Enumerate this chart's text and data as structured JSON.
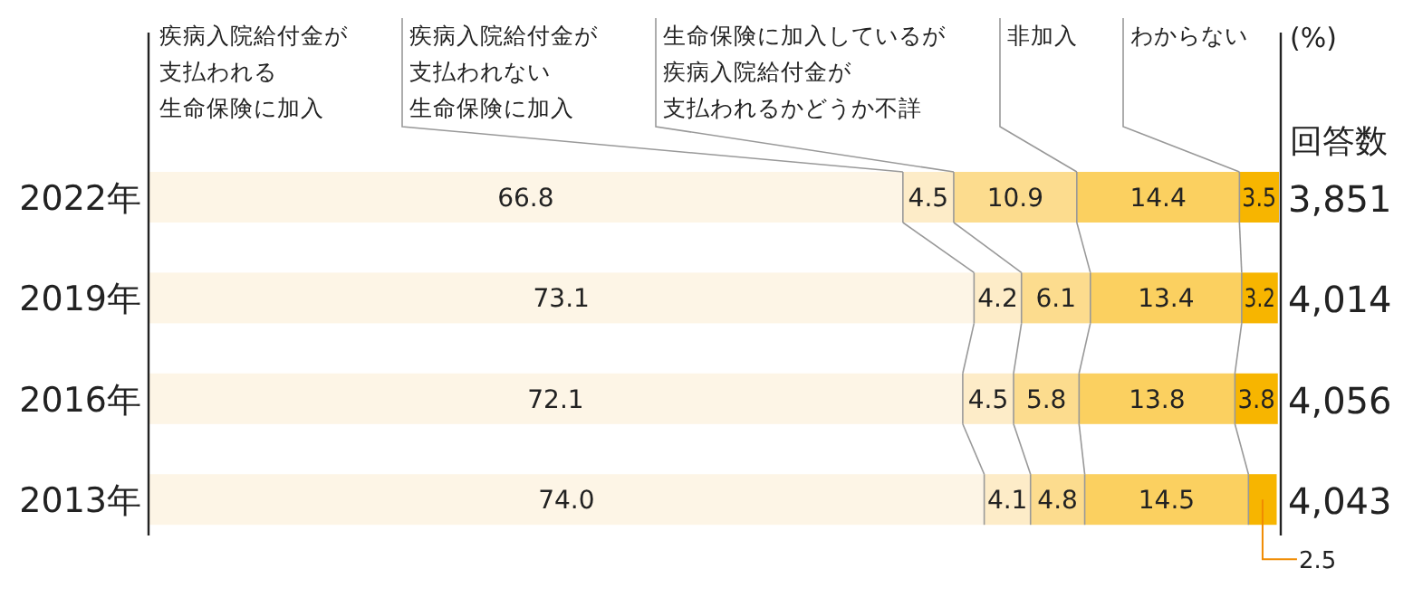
{
  "chart_data": {
    "type": "bar",
    "orientation": "horizontal",
    "stacked": true,
    "legend": "top",
    "categories": [
      "2022年",
      "2019年",
      "2016年",
      "2013年"
    ],
    "series": [
      {
        "name": "疾病入院給付金が支払われる生命保険に加入",
        "color": "#fdf5e6",
        "values": [
          66.8,
          73.1,
          72.1,
          74.0
        ],
        "value_labels": [
          "66.8",
          "73.1",
          "72.1",
          "74.0"
        ]
      },
      {
        "name": "疾病入院給付金が支払われない生命保険に加入",
        "color": "#fdecc8",
        "values": [
          4.5,
          4.2,
          4.5,
          4.1
        ],
        "value_labels": [
          "4.5",
          "4.2",
          "4.5",
          "4.1"
        ]
      },
      {
        "name": "生命保険に加入しているが疾病入院給付金が支払われるかどうか不詳",
        "color": "#fcdc8e",
        "values": [
          10.9,
          6.1,
          5.8,
          4.8
        ],
        "value_labels": [
          "10.9",
          "6.1",
          "5.8",
          "4.8"
        ]
      },
      {
        "name": "非加入",
        "color": "#fbd060",
        "values": [
          14.4,
          13.4,
          13.8,
          14.5
        ],
        "value_labels": [
          "14.4",
          "13.4",
          "13.8",
          "14.5"
        ]
      },
      {
        "name": "わからない",
        "color": "#f7b500",
        "values": [
          3.5,
          3.2,
          3.8,
          2.5
        ],
        "value_labels": [
          "3.5",
          "3.2",
          "3.8",
          "2.5"
        ]
      }
    ],
    "annotations": [
      "(%)",
      "回答数",
      "3,851",
      "4,014",
      "4,056",
      "4,043"
    ]
  }
}
